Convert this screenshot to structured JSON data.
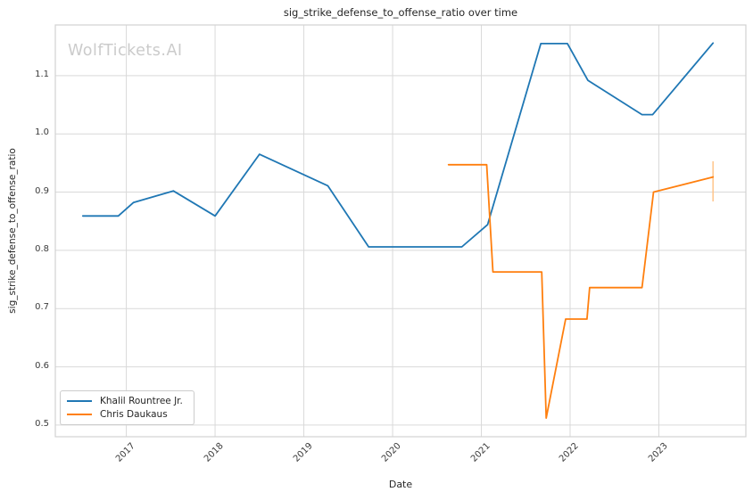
{
  "watermark": "WolfTickets.AI",
  "colors": {
    "background": "#ffffff",
    "grid": "#d9d9d9",
    "spine": "#d2d2d2",
    "text": "#262626",
    "tick_text": "#3b3b3b",
    "watermark": "#cbcbcb",
    "legend_border": "#cccccc",
    "series_blue": "#1f77b4",
    "series_orange": "#ff7f0e",
    "error_bar": "#ffc58a"
  },
  "chart_data": {
    "type": "line",
    "title": "sig_strike_defense_to_offense_ratio over time",
    "xlabel": "Date",
    "ylabel": "sig_strike_defense_to_offense_ratio",
    "grid": true,
    "legend_position": "lower left",
    "xlim": [
      2016.2,
      2023.98
    ],
    "ylim": [
      0.48,
      1.187
    ],
    "x_ticks": [
      2017,
      2018,
      2019,
      2020,
      2021,
      2022,
      2023
    ],
    "x_tick_labels": [
      "2017",
      "2018",
      "2019",
      "2020",
      "2021",
      "2022",
      "2023"
    ],
    "y_ticks": [
      0.5,
      0.6,
      0.7,
      0.8,
      0.9,
      1.0,
      1.1
    ],
    "y_tick_labels": [
      "0.5",
      "0.6",
      "0.7",
      "0.8",
      "0.9",
      "1.0",
      "1.1"
    ],
    "series": [
      {
        "name": "Khalil Rountree Jr.",
        "color": "#1f77b4",
        "x": [
          2016.51,
          2016.91,
          2017.08,
          2017.53,
          2018.0,
          2018.5,
          2019.27,
          2019.73,
          2020.78,
          2021.07,
          2021.67,
          2021.97,
          2022.2,
          2022.81,
          2022.93,
          2023.61
        ],
        "y": [
          0.859,
          0.859,
          0.882,
          0.902,
          0.859,
          0.965,
          0.911,
          0.806,
          0.806,
          0.844,
          1.155,
          1.155,
          1.092,
          1.033,
          1.033,
          1.156
        ]
      },
      {
        "name": "Chris Daukaus",
        "color": "#ff7f0e",
        "x": [
          2020.63,
          2021.06,
          2021.13,
          2021.68,
          2021.73,
          2021.95,
          2022.19,
          2022.22,
          2022.81,
          2022.94,
          2023.61
        ],
        "y": [
          0.947,
          0.947,
          0.763,
          0.763,
          0.512,
          0.682,
          0.682,
          0.736,
          0.736,
          0.9,
          0.926
        ],
        "error_bar": {
          "x": 2023.61,
          "y_low": 0.884,
          "y_high": 0.953
        }
      }
    ]
  }
}
